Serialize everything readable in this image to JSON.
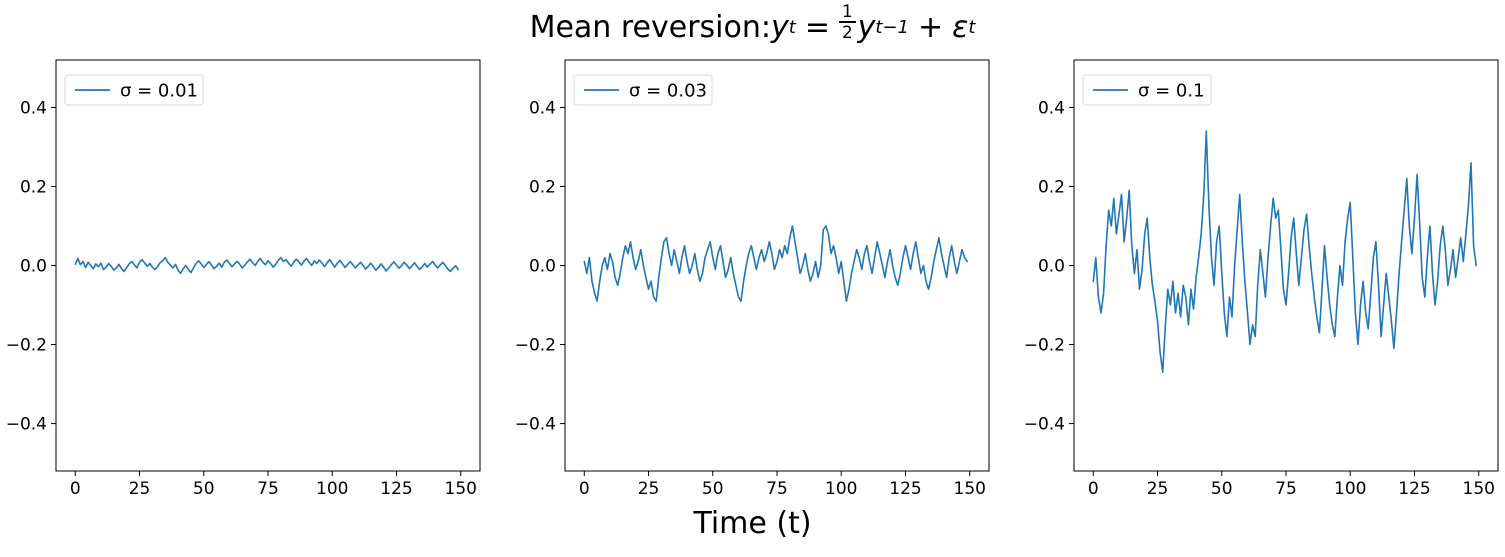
{
  "title_parts": {
    "prefix": "Mean reversion: ",
    "y1": "y",
    "y1sub": "t",
    "eq": "=",
    "num": "1",
    "den": "2",
    "y2": "y",
    "y2sub": "t−1",
    "plus": "+",
    "eps": "ε",
    "epssub": "t"
  },
  "suptitle_text": "Mean reversion: y_t = (1/2) y_{t−1} + ε_t",
  "xlabel": "Time (t)",
  "line_color": "#1f77b4",
  "chart_data": [
    {
      "type": "line",
      "legend": "σ = 0.01",
      "xticks": [
        0,
        25,
        50,
        75,
        100,
        125,
        150
      ],
      "yticks": [
        -0.4,
        -0.2,
        0,
        0.2,
        0.4
      ],
      "xlim": [
        -7.5,
        157.5
      ],
      "ylim": [
        -0.52,
        0.52
      ],
      "values": [
        0.003,
        0.018,
        0.002,
        0.01,
        -0.005,
        0.008,
        0.0,
        -0.008,
        0.004,
        -0.003,
        0.006,
        -0.01,
        -0.004,
        0.005,
        -0.002,
        -0.012,
        -0.006,
        0.003,
        -0.008,
        -0.015,
        -0.005,
        0.004,
        0.01,
        0.002,
        -0.006,
        0.008,
        0.015,
        0.006,
        -0.002,
        0.005,
        -0.004,
        -0.01,
        -0.003,
        0.007,
        0.012,
        0.02,
        0.008,
        0.001,
        -0.006,
        0.003,
        -0.012,
        -0.02,
        -0.008,
        0.0,
        -0.01,
        -0.018,
        -0.006,
        0.005,
        0.012,
        0.004,
        -0.005,
        0.002,
        0.01,
        0.001,
        -0.008,
        -0.002,
        0.006,
        -0.004,
        0.008,
        0.014,
        0.005,
        -0.003,
        0.004,
        0.011,
        0.003,
        -0.006,
        0.001,
        0.009,
        0.016,
        0.007,
        0.0,
        0.01,
        0.018,
        0.008,
        0.002,
        0.012,
        0.005,
        -0.004,
        0.003,
        0.013,
        0.02,
        0.01,
        0.015,
        0.006,
        -0.002,
        0.008,
        0.016,
        0.009,
        0.001,
        0.011,
        0.018,
        0.008,
        0.0,
        0.012,
        0.005,
        0.014,
        0.006,
        -0.003,
        0.007,
        0.015,
        0.005,
        -0.004,
        0.006,
        0.013,
        0.004,
        -0.005,
        0.003,
        0.01,
        0.002,
        -0.006,
        0.001,
        0.008,
        0.0,
        -0.009,
        -0.002,
        0.006,
        -0.003,
        -0.012,
        -0.005,
        0.004,
        -0.004,
        -0.014,
        -0.006,
        0.002,
        0.009,
        0.001,
        -0.007,
        0.0,
        0.008,
        0.001,
        -0.008,
        -0.001,
        0.007,
        -0.002,
        -0.01,
        -0.003,
        0.005,
        -0.004,
        0.003,
        0.01,
        0.002,
        -0.006,
        0.001,
        0.008,
        0.0,
        -0.009,
        -0.015,
        -0.007,
        -0.001,
        -0.01
      ]
    },
    {
      "type": "line",
      "legend": "σ = 0.03",
      "xticks": [
        0,
        25,
        50,
        75,
        100,
        125,
        150
      ],
      "yticks": [
        -0.4,
        -0.2,
        0,
        0.2,
        0.4
      ],
      "xlim": [
        -7.5,
        157.5
      ],
      "ylim": [
        -0.52,
        0.52
      ],
      "values": [
        0.01,
        -0.02,
        0.02,
        -0.04,
        -0.07,
        -0.09,
        -0.04,
        0.0,
        0.02,
        -0.01,
        0.03,
        0.01,
        -0.03,
        -0.05,
        -0.02,
        0.02,
        0.05,
        0.03,
        0.06,
        0.02,
        -0.01,
        0.01,
        0.04,
        0.0,
        -0.03,
        -0.06,
        -0.04,
        -0.08,
        -0.09,
        -0.03,
        0.02,
        0.06,
        0.07,
        0.03,
        0.0,
        0.04,
        0.01,
        -0.02,
        0.02,
        0.05,
        0.01,
        -0.02,
        0.0,
        0.03,
        -0.01,
        -0.04,
        -0.02,
        0.02,
        0.04,
        0.06,
        0.02,
        -0.01,
        0.03,
        0.05,
        0.01,
        -0.03,
        -0.01,
        0.02,
        -0.02,
        -0.05,
        -0.08,
        -0.09,
        -0.04,
        0.0,
        0.03,
        0.05,
        0.02,
        -0.01,
        0.02,
        0.04,
        0.01,
        0.03,
        0.06,
        0.03,
        -0.01,
        0.01,
        0.04,
        0.02,
        0.05,
        0.03,
        0.07,
        0.1,
        0.06,
        0.02,
        -0.02,
        0.0,
        0.03,
        -0.01,
        -0.04,
        -0.02,
        0.01,
        -0.03,
        0.0,
        0.09,
        0.1,
        0.08,
        0.03,
        0.05,
        0.02,
        -0.02,
        0.01,
        -0.04,
        -0.09,
        -0.06,
        -0.02,
        0.01,
        0.04,
        0.02,
        -0.01,
        0.03,
        0.05,
        0.01,
        -0.02,
        0.02,
        0.06,
        0.03,
        0.0,
        -0.03,
        0.01,
        0.04,
        0.0,
        -0.03,
        -0.05,
        -0.02,
        0.02,
        0.05,
        0.02,
        -0.01,
        0.03,
        0.06,
        0.02,
        -0.02,
        0.0,
        -0.04,
        -0.06,
        -0.03,
        0.01,
        0.04,
        0.07,
        0.03,
        0.0,
        -0.03,
        0.02,
        0.05,
        0.01,
        -0.02,
        0.01,
        0.04,
        0.02,
        0.01
      ]
    },
    {
      "type": "line",
      "legend": "σ = 0.1",
      "xticks": [
        0,
        25,
        50,
        75,
        100,
        125,
        150
      ],
      "yticks": [
        -0.4,
        -0.2,
        0,
        0.2,
        0.4
      ],
      "xlim": [
        -7.5,
        157.5
      ],
      "ylim": [
        -0.52,
        0.52
      ],
      "values": [
        -0.04,
        0.02,
        -0.08,
        -0.12,
        -0.07,
        0.05,
        0.14,
        0.1,
        0.17,
        0.08,
        0.13,
        0.18,
        0.06,
        0.12,
        0.19,
        0.05,
        -0.02,
        0.04,
        -0.06,
        -0.01,
        0.08,
        0.12,
        0.02,
        -0.05,
        -0.09,
        -0.14,
        -0.22,
        -0.27,
        -0.16,
        -0.06,
        -0.1,
        -0.04,
        -0.12,
        -0.07,
        -0.13,
        -0.05,
        -0.08,
        -0.15,
        -0.06,
        -0.11,
        -0.03,
        0.02,
        0.08,
        0.18,
        0.34,
        0.15,
        0.02,
        -0.05,
        0.06,
        0.1,
        -0.02,
        -0.12,
        -0.18,
        -0.08,
        -0.13,
        0.0,
        0.09,
        0.18,
        0.06,
        -0.04,
        -0.12,
        -0.2,
        -0.15,
        -0.18,
        -0.05,
        0.04,
        -0.02,
        -0.08,
        0.02,
        0.1,
        0.17,
        0.12,
        0.14,
        0.04,
        -0.06,
        -0.1,
        -0.02,
        0.07,
        0.12,
        0.03,
        -0.05,
        0.02,
        0.09,
        0.13,
        0.05,
        -0.02,
        -0.08,
        -0.13,
        -0.17,
        -0.06,
        0.05,
        -0.03,
        -0.1,
        -0.15,
        -0.18,
        -0.08,
        0.0,
        -0.05,
        0.06,
        0.12,
        0.16,
        0.02,
        -0.12,
        -0.2,
        -0.1,
        -0.04,
        -0.12,
        -0.16,
        -0.07,
        0.02,
        0.06,
        -0.05,
        -0.18,
        -0.1,
        -0.02,
        -0.08,
        -0.14,
        -0.21,
        -0.12,
        -0.02,
        0.06,
        0.14,
        0.22,
        0.1,
        0.03,
        0.12,
        0.23,
        0.11,
        -0.03,
        -0.08,
        0.02,
        0.1,
        -0.02,
        -0.1,
        -0.04,
        0.05,
        0.1,
        0.04,
        -0.05,
        -0.01,
        0.04,
        -0.03,
        0.02,
        0.07,
        0.01,
        0.08,
        0.15,
        0.26,
        0.05,
        0.0
      ]
    }
  ]
}
